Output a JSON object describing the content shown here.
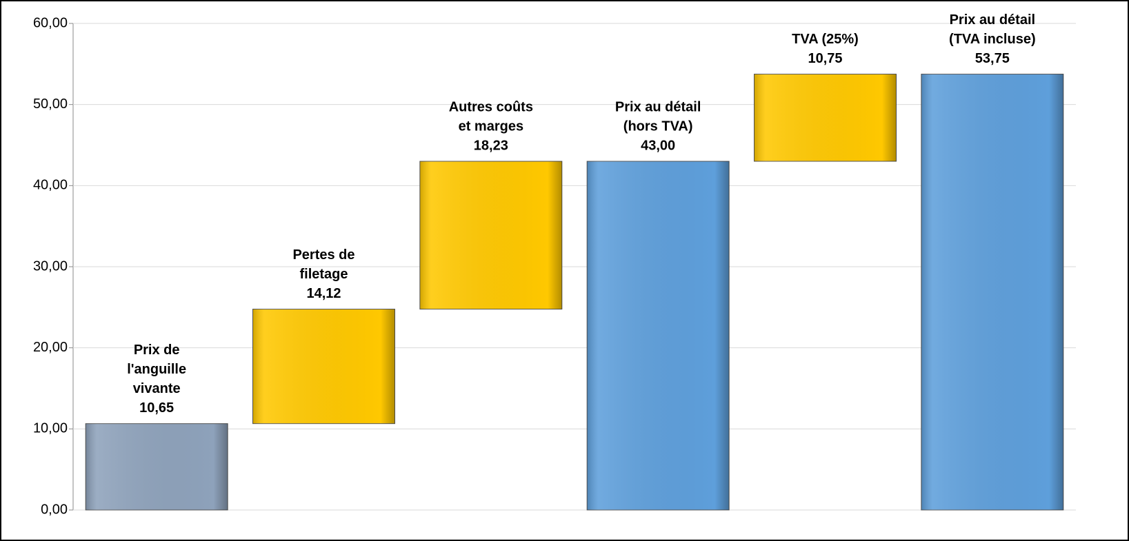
{
  "chart_data": {
    "type": "waterfall",
    "categories": [
      [
        "Prix de",
        "l'anguille",
        "vivante"
      ],
      [
        "Pertes de",
        "filetage"
      ],
      [
        "Autres coûts",
        "et marges"
      ],
      [
        "Prix au détail",
        "(hors TVA)"
      ],
      [
        "TVA (25%)"
      ],
      [
        "Prix au détail",
        "(TVA incluse)"
      ]
    ],
    "values": [
      10.65,
      14.12,
      18.23,
      43.0,
      10.75,
      53.75
    ],
    "value_labels": [
      "10,65",
      "14,12",
      "18,23",
      "43,00",
      "10,75",
      "53,75"
    ],
    "kinds": [
      "total",
      "increase",
      "increase",
      "total",
      "increase",
      "total"
    ],
    "colors": [
      "#8ea2bb",
      "#ffc800",
      "#ffc800",
      "#5e9fdb",
      "#ffc800",
      "#5e9fdb"
    ],
    "ylim": [
      0,
      60
    ],
    "yticks": [
      {
        "value": 0,
        "label": "0,00"
      },
      {
        "value": 10,
        "label": "10,00"
      },
      {
        "value": 20,
        "label": "20,00"
      },
      {
        "value": 30,
        "label": "30,00"
      },
      {
        "value": 40,
        "label": "40,00"
      },
      {
        "value": 50,
        "label": "50,00"
      },
      {
        "value": 60,
        "label": "60,00"
      }
    ],
    "grid": true
  }
}
